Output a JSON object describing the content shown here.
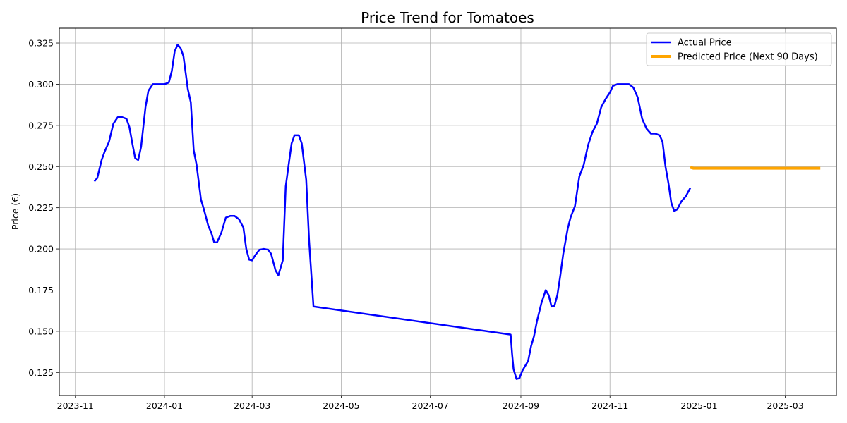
{
  "chart_data": {
    "type": "line",
    "title": "Price Trend for Tomatoes",
    "xlabel": "",
    "ylabel": "Price (€)",
    "grid": true,
    "legend_position": "top-right",
    "xlim": [
      "2023-10-21",
      "2025-04-05"
    ],
    "ylim": [
      0.111,
      0.334
    ],
    "x_ticks": [
      "2023-11",
      "2024-01",
      "2024-03",
      "2024-05",
      "2024-07",
      "2024-09",
      "2024-11",
      "2025-01",
      "2025-03"
    ],
    "y_ticks": [
      0.125,
      0.15,
      0.175,
      0.2,
      0.225,
      0.25,
      0.275,
      0.3,
      0.325
    ],
    "y_tick_labels": [
      "0.125",
      "0.150",
      "0.175",
      "0.200",
      "0.225",
      "0.250",
      "0.275",
      "0.300",
      "0.325"
    ],
    "series": [
      {
        "name": "Actual Price",
        "color": "#0000ff",
        "points": [
          [
            "2023-11-14",
            0.241
          ],
          [
            "2023-11-16",
            0.243
          ],
          [
            "2023-11-19",
            0.254
          ],
          [
            "2023-11-21",
            0.259
          ],
          [
            "2023-11-24",
            0.265
          ],
          [
            "2023-11-27",
            0.276
          ],
          [
            "2023-11-30",
            0.28
          ],
          [
            "2023-12-03",
            0.28
          ],
          [
            "2023-12-06",
            0.279
          ],
          [
            "2023-12-08",
            0.274
          ],
          [
            "2023-12-10",
            0.264
          ],
          [
            "2023-12-12",
            0.255
          ],
          [
            "2023-12-14",
            0.254
          ],
          [
            "2023-12-16",
            0.262
          ],
          [
            "2023-12-19",
            0.286
          ],
          [
            "2023-12-21",
            0.296
          ],
          [
            "2023-12-24",
            0.3
          ],
          [
            "2023-12-28",
            0.3
          ],
          [
            "2024-01-01",
            0.3
          ],
          [
            "2024-01-04",
            0.301
          ],
          [
            "2024-01-06",
            0.308
          ],
          [
            "2024-01-08",
            0.32
          ],
          [
            "2024-01-10",
            0.324
          ],
          [
            "2024-01-12",
            0.322
          ],
          [
            "2024-01-14",
            0.317
          ],
          [
            "2024-01-17",
            0.297
          ],
          [
            "2024-01-19",
            0.289
          ],
          [
            "2024-01-21",
            0.26
          ],
          [
            "2024-01-23",
            0.251
          ],
          [
            "2024-01-26",
            0.23
          ],
          [
            "2024-01-28",
            0.224
          ],
          [
            "2024-01-31",
            0.214
          ],
          [
            "2024-02-02",
            0.21
          ],
          [
            "2024-02-04",
            0.204
          ],
          [
            "2024-02-06",
            0.204
          ],
          [
            "2024-02-09",
            0.21
          ],
          [
            "2024-02-12",
            0.219
          ],
          [
            "2024-02-15",
            0.22
          ],
          [
            "2024-02-18",
            0.22
          ],
          [
            "2024-02-21",
            0.218
          ],
          [
            "2024-02-24",
            0.213
          ],
          [
            "2024-02-26",
            0.2
          ],
          [
            "2024-02-28",
            0.1935
          ],
          [
            "2024-03-01",
            0.193
          ],
          [
            "2024-03-03",
            0.196
          ],
          [
            "2024-03-06",
            0.1995
          ],
          [
            "2024-03-09",
            0.2
          ],
          [
            "2024-03-12",
            0.1995
          ],
          [
            "2024-03-14",
            0.197
          ],
          [
            "2024-03-17",
            0.187
          ],
          [
            "2024-03-19",
            0.184
          ],
          [
            "2024-03-22",
            0.193
          ],
          [
            "2024-03-24",
            0.238
          ],
          [
            "2024-03-26",
            0.251
          ],
          [
            "2024-03-28",
            0.264
          ],
          [
            "2024-03-30",
            0.269
          ],
          [
            "2024-04-02",
            0.269
          ],
          [
            "2024-04-04",
            0.264
          ],
          [
            "2024-04-07",
            0.242
          ],
          [
            "2024-04-09",
            0.205
          ],
          [
            "2024-04-12",
            0.165
          ],
          [
            "2024-08-25",
            0.148
          ],
          [
            "2024-08-26",
            0.136
          ],
          [
            "2024-08-27",
            0.127
          ],
          [
            "2024-08-29",
            0.121
          ],
          [
            "2024-08-31",
            0.1215
          ],
          [
            "2024-09-02",
            0.126
          ],
          [
            "2024-09-06",
            0.132
          ],
          [
            "2024-09-08",
            0.141
          ],
          [
            "2024-09-10",
            0.147
          ],
          [
            "2024-09-12",
            0.156
          ],
          [
            "2024-09-15",
            0.167
          ],
          [
            "2024-09-18",
            0.175
          ],
          [
            "2024-09-20",
            0.172
          ],
          [
            "2024-09-22",
            0.165
          ],
          [
            "2024-09-24",
            0.1655
          ],
          [
            "2024-09-26",
            0.172
          ],
          [
            "2024-09-28",
            0.184
          ],
          [
            "2024-09-30",
            0.197
          ],
          [
            "2024-10-03",
            0.212
          ],
          [
            "2024-10-05",
            0.219
          ],
          [
            "2024-10-08",
            0.226
          ],
          [
            "2024-10-11",
            0.244
          ],
          [
            "2024-10-14",
            0.251
          ],
          [
            "2024-10-17",
            0.263
          ],
          [
            "2024-10-20",
            0.271
          ],
          [
            "2024-10-23",
            0.276
          ],
          [
            "2024-10-26",
            0.286
          ],
          [
            "2024-10-29",
            0.291
          ],
          [
            "2024-11-01",
            0.295
          ],
          [
            "2024-11-03",
            0.299
          ],
          [
            "2024-11-06",
            0.3
          ],
          [
            "2024-11-10",
            0.3
          ],
          [
            "2024-11-14",
            0.3
          ],
          [
            "2024-11-17",
            0.298
          ],
          [
            "2024-11-20",
            0.292
          ],
          [
            "2024-11-23",
            0.279
          ],
          [
            "2024-11-26",
            0.273
          ],
          [
            "2024-11-29",
            0.27
          ],
          [
            "2024-12-02",
            0.27
          ],
          [
            "2024-12-05",
            0.269
          ],
          [
            "2024-12-07",
            0.265
          ],
          [
            "2024-12-09",
            0.25
          ],
          [
            "2024-12-11",
            0.24
          ],
          [
            "2024-12-13",
            0.228
          ],
          [
            "2024-12-15",
            0.223
          ],
          [
            "2024-12-17",
            0.224
          ],
          [
            "2024-12-20",
            0.229
          ],
          [
            "2024-12-23",
            0.232
          ],
          [
            "2024-12-26",
            0.237
          ]
        ]
      },
      {
        "name": "Predicted Price (Next 90 Days)",
        "color": "#ffa500",
        "points": [
          [
            "2024-12-26",
            0.2495
          ],
          [
            "2024-12-28",
            0.249
          ],
          [
            "2025-03-25",
            0.249
          ]
        ]
      }
    ]
  }
}
